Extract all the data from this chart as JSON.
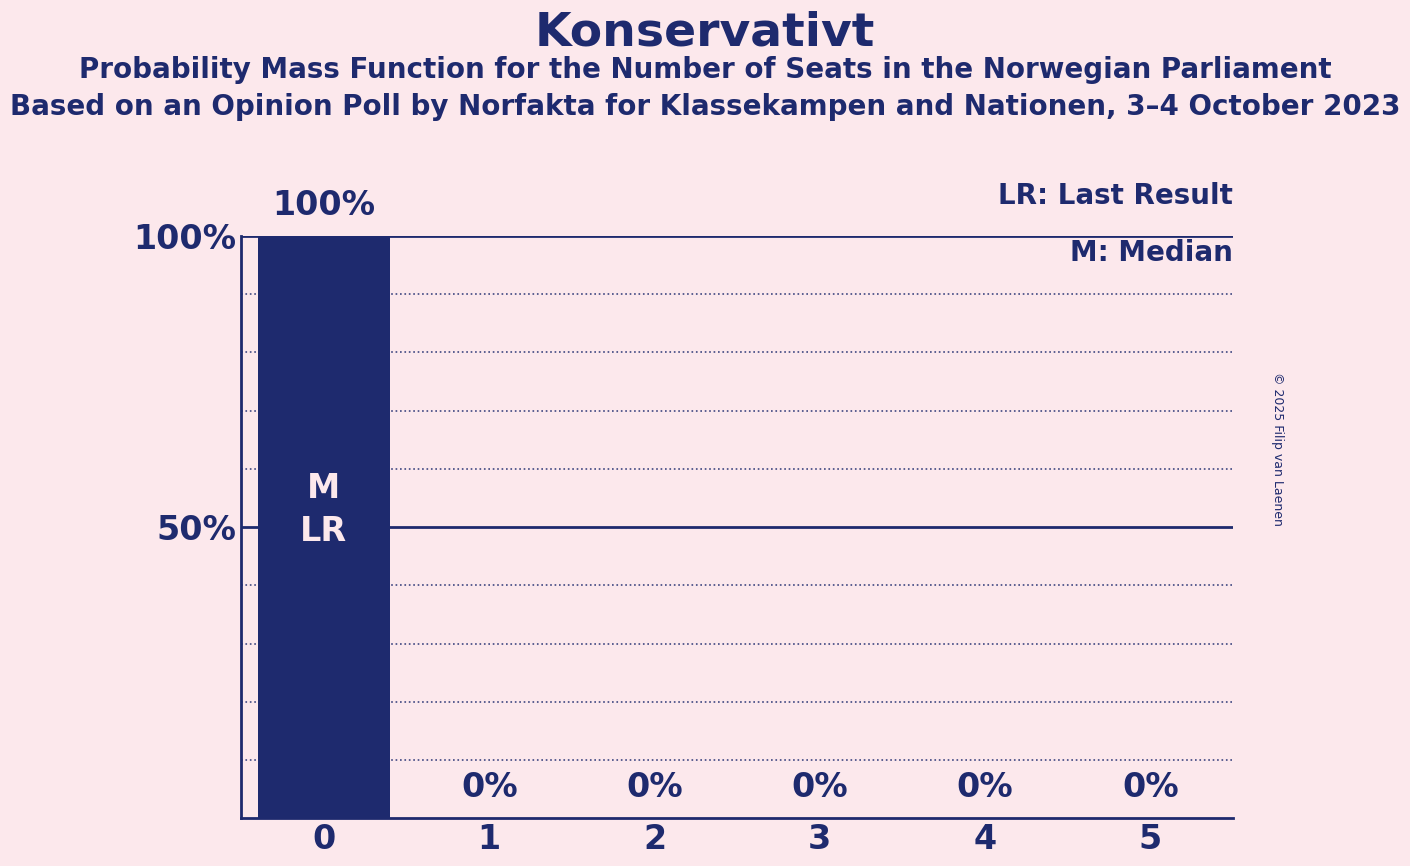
{
  "title": "Konservativt",
  "subtitle1": "Probability Mass Function for the Number of Seats in the Norwegian Parliament",
  "subtitle2": "Based on an Opinion Poll by Norfakta for Klassekampen and Nationen, 3–4 October 2023",
  "copyright": "© 2025 Filip van Laenen",
  "categories": [
    0,
    1,
    2,
    3,
    4,
    5
  ],
  "values": [
    1.0,
    0.0,
    0.0,
    0.0,
    0.0,
    0.0
  ],
  "bar_color": "#1e2a6e",
  "background_color": "#fce8ec",
  "text_color": "#1e2a6e",
  "bar_label_color": "#fce8ec",
  "title_fontsize": 34,
  "subtitle_fontsize": 20,
  "tick_fontsize": 24,
  "bar_annotation_fontsize": 24,
  "legend_fontsize": 20,
  "copyright_fontsize": 9,
  "ylim": [
    0,
    1.0
  ],
  "yticks": [
    0.0,
    0.1,
    0.2,
    0.3,
    0.4,
    0.5,
    0.6,
    0.7,
    0.8,
    0.9,
    1.0
  ],
  "ytick_labels": [
    "",
    "",
    "",
    "",
    "",
    "50%",
    "",
    "",
    "",
    "",
    "100%"
  ],
  "bar_top_label": "100%",
  "grid_color": "#1e2a6e",
  "lr_line_color": "#1e2a6e",
  "solid_line_y": 1.0,
  "lr_label": "LR: Last Result",
  "m_label": "M: Median",
  "m_lr_inside_label": "M\nLR",
  "zero_pct_label": "0%",
  "xlim": [
    -0.5,
    5.5
  ]
}
